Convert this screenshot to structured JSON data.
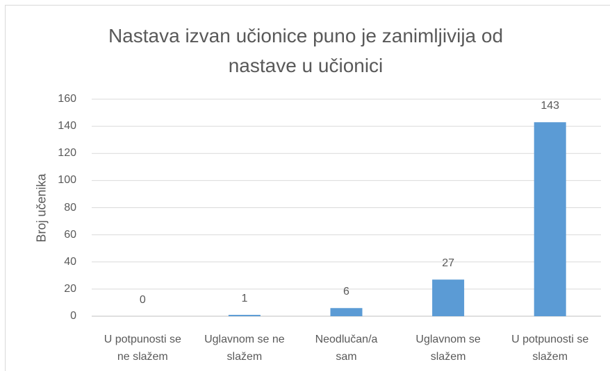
{
  "chart_data": {
    "type": "bar",
    "title": "Nastava izvan učionice puno je zanimljivija od nastave u učionici",
    "y_label": "Broj učenika",
    "categories": [
      "U potpunosti se ne slažem",
      "Uglavnom se ne slažem",
      "Neodlučan/a sam",
      "Uglavnom se slažem",
      "U potpunosti se slažem"
    ],
    "values": [
      0,
      1,
      6,
      27,
      143
    ],
    "color": "#5b9bd5",
    "ylim": [
      0,
      160
    ],
    "yticks": [
      0,
      20,
      40,
      60,
      80,
      100,
      120,
      140,
      160
    ],
    "grid": true
  }
}
